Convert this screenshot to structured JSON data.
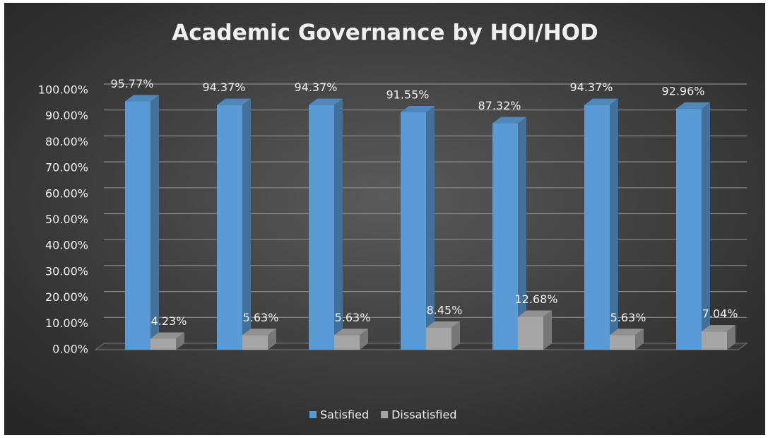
{
  "chart_data": {
    "type": "bar3d",
    "title": "Academic Governance by HOI/HOD",
    "categories": [
      null,
      null,
      null,
      null,
      null,
      null,
      null
    ],
    "series": [
      {
        "name": "Satisfied",
        "color": "#5b9bd5",
        "values": [
          95.77,
          94.37,
          94.37,
          91.55,
          87.32,
          94.37,
          92.96
        ],
        "value_labels": [
          "95.77%",
          "94.37%",
          "94.37%",
          "91.55%",
          "87.32%",
          "94.37%",
          "92.96%"
        ]
      },
      {
        "name": "Dissatisfied",
        "color": "#a5a5a5",
        "values": [
          4.23,
          5.63,
          5.63,
          8.45,
          12.68,
          5.63,
          7.04
        ],
        "value_labels": [
          "4.23%",
          "5.63%",
          "5.63%",
          "8.45%",
          "12.68%",
          "5.63%",
          "7.04%"
        ]
      }
    ],
    "ylim": [
      0,
      100
    ],
    "yticks": [
      {
        "value": 0,
        "label": "0.00%"
      },
      {
        "value": 10,
        "label": "10.00%"
      },
      {
        "value": 20,
        "label": "20.00%"
      },
      {
        "value": 30,
        "label": "30.00%"
      },
      {
        "value": 40,
        "label": "40.00%"
      },
      {
        "value": 50,
        "label": "50.00%"
      },
      {
        "value": 60,
        "label": "60.00%"
      },
      {
        "value": 70,
        "label": "70.00%"
      },
      {
        "value": 80,
        "label": "80.00%"
      },
      {
        "value": 90,
        "label": "90.00%"
      },
      {
        "value": 100,
        "label": "100.00%"
      }
    ],
    "grid": true,
    "legend": "bottom"
  }
}
